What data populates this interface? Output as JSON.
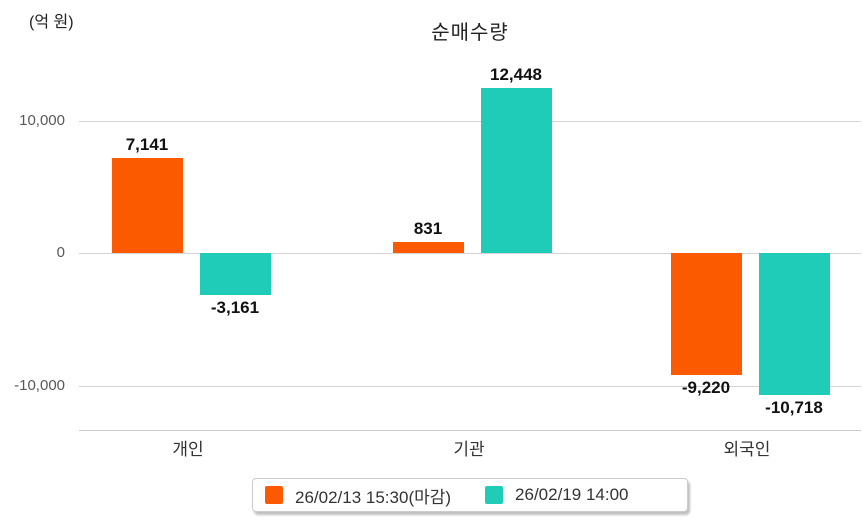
{
  "chart_data": {
    "type": "bar",
    "title": "순매수량",
    "unit_label": "(억 원)",
    "categories": [
      "개인",
      "기관",
      "외국인"
    ],
    "series": [
      {
        "name": "26/02/13 15:30(마감)",
        "color": "#fb5a01",
        "values": [
          7141,
          831,
          -9220
        ],
        "value_labels": [
          "7,141",
          "831",
          "-9,220"
        ]
      },
      {
        "name": "26/02/19 14:00",
        "color": "#1fccb7",
        "values": [
          -3161,
          12448,
          -10718
        ],
        "value_labels": [
          "-3,161",
          "12,448",
          "-10,718"
        ]
      }
    ],
    "y_ticks": [
      {
        "value": 10000,
        "label": "10,000"
      },
      {
        "value": 0,
        "label": "0"
      },
      {
        "value": -10000,
        "label": "-10,000"
      }
    ],
    "ylim": [
      -13350,
      13100
    ],
    "grid": "horizontal-only",
    "legend_position": "bottom-center"
  },
  "colors": {
    "gridline": "#d4d4d4",
    "axis_line": "#cccccc",
    "tick_text": "#595959",
    "value_text": "#111111",
    "category_text": "#333333",
    "background": "#ffffff"
  }
}
